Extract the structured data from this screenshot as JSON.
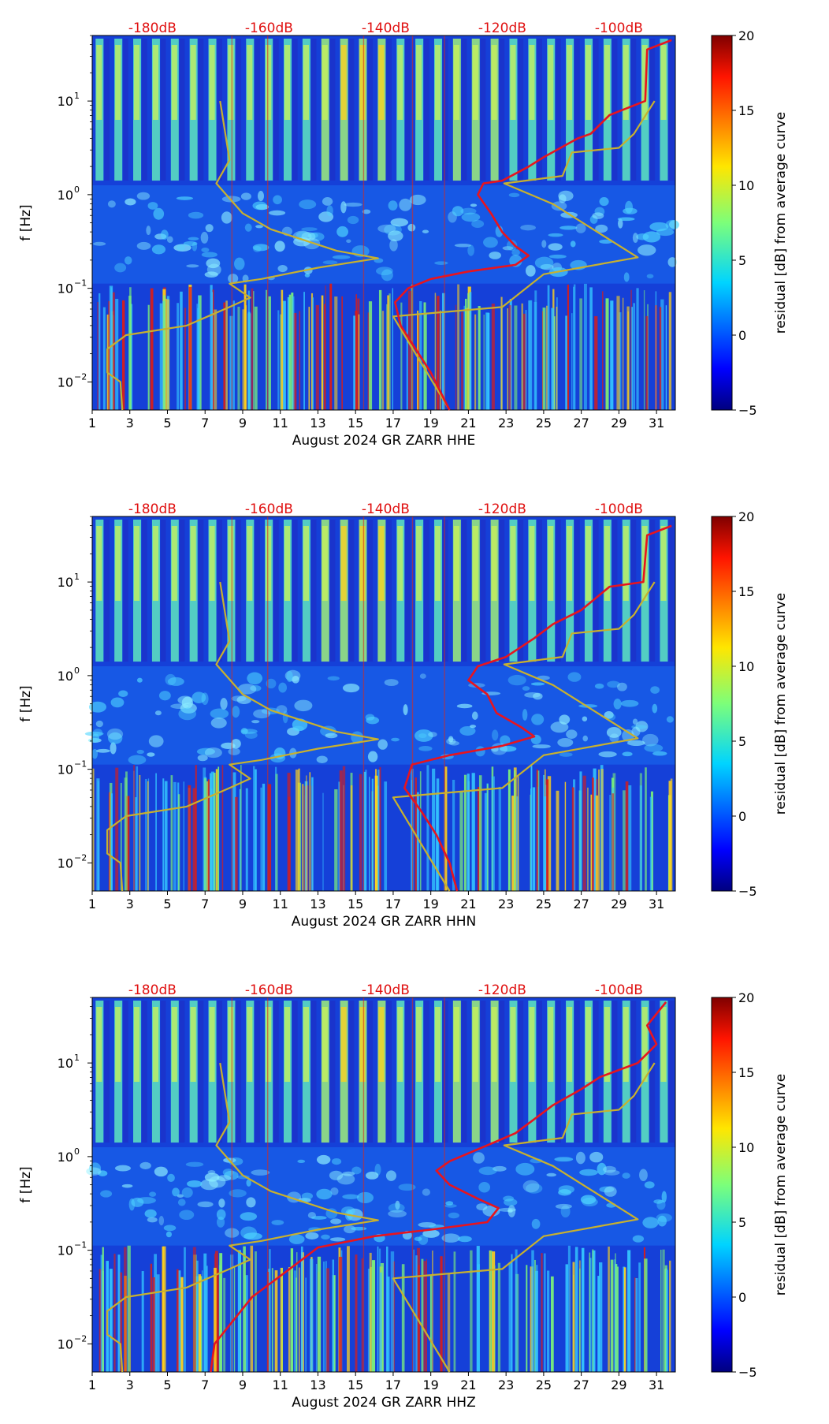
{
  "chart_data": [
    {
      "type": "heatmap",
      "xlabel": "August 2024 GR ZARR  HHE",
      "ylabel": "f [Hz]",
      "xticks": [
        "1",
        "3",
        "5",
        "7",
        "9",
        "11",
        "13",
        "15",
        "17",
        "19",
        "21",
        "23",
        "25",
        "27",
        "29",
        "31"
      ],
      "yticks": [
        {
          "exp": -2,
          "label": "10",
          "sup": "−2"
        },
        {
          "exp": -1,
          "label": "10",
          "sup": "−1"
        },
        {
          "exp": 0,
          "label": "10",
          "sup": "0"
        },
        {
          "exp": 1,
          "label": "10",
          "sup": "1"
        }
      ],
      "xlim": [
        1,
        32
      ],
      "ylim_log10": [
        -2.3,
        1.7
      ],
      "db_labels": [
        "-180dB",
        "-160dB",
        "-140dB",
        "-120dB",
        "-100dB"
      ],
      "db_positions_day": [
        4.2,
        10.4,
        16.6,
        22.8,
        29.0
      ],
      "colorbar": {
        "label": "residual [dB] from average curve",
        "ticks": [
          "−5",
          "0",
          "5",
          "10",
          "15",
          "20"
        ],
        "range": [
          -5,
          20
        ]
      },
      "series": [
        {
          "name": "model-bounds",
          "color": "#c8b12e",
          "points": [
            [
              7.8,
              1.0
            ],
            [
              8.3,
              0.37
            ],
            [
              7.6,
              0.12
            ],
            [
              9.0,
              -0.2
            ],
            [
              10.5,
              -0.37
            ],
            [
              14.0,
              -0.6
            ],
            [
              16.2,
              -0.68
            ],
            [
              13.0,
              -0.78
            ],
            [
              10.0,
              -0.9
            ],
            [
              8.3,
              -0.95
            ],
            [
              9.4,
              -1.1
            ],
            [
              8.3,
              -1.2
            ],
            [
              6.0,
              -1.4
            ],
            [
              2.8,
              -1.5
            ],
            [
              1.8,
              -1.65
            ],
            [
              1.8,
              -1.9
            ],
            [
              2.5,
              -2.0
            ],
            [
              2.6,
              -2.3
            ]
          ]
        },
        {
          "name": "model-bounds-2",
          "color": "#c8b12e",
          "points": [
            [
              30.9,
              1.0
            ],
            [
              29.8,
              0.65
            ],
            [
              29.0,
              0.5
            ],
            [
              26.5,
              0.45
            ],
            [
              26.0,
              0.2
            ],
            [
              22.9,
              0.12
            ],
            [
              25.5,
              -0.1
            ],
            [
              30.0,
              -0.67
            ],
            [
              25.0,
              -0.85
            ],
            [
              22.8,
              -1.2
            ],
            [
              17.0,
              -1.3
            ],
            [
              20.0,
              -2.3
            ]
          ]
        },
        {
          "name": "measured-psd",
          "color": "#e8141e",
          "points": [
            [
              31.8,
              1.65
            ],
            [
              30.5,
              1.55
            ],
            [
              30.4,
              1.0
            ],
            [
              28.5,
              0.85
            ],
            [
              27.5,
              0.65
            ],
            [
              26.8,
              0.6
            ],
            [
              25.0,
              0.4
            ],
            [
              24.2,
              0.3
            ],
            [
              22.8,
              0.15
            ],
            [
              21.8,
              0.12
            ],
            [
              21.5,
              0.0
            ],
            [
              22.2,
              -0.2
            ],
            [
              22.8,
              -0.4
            ],
            [
              23.5,
              -0.55
            ],
            [
              24.2,
              -0.65
            ],
            [
              23.5,
              -0.75
            ],
            [
              21.0,
              -0.82
            ],
            [
              19.0,
              -0.9
            ],
            [
              17.8,
              -1.0
            ],
            [
              17.1,
              -1.15
            ],
            [
              17.4,
              -1.4
            ],
            [
              18.2,
              -1.65
            ],
            [
              19.0,
              -1.9
            ],
            [
              19.5,
              -2.1
            ],
            [
              20.0,
              -2.3
            ]
          ]
        }
      ]
    },
    {
      "type": "heatmap",
      "xlabel": "August 2024 GR ZARR  HHN",
      "ylabel": "f [Hz]",
      "xticks": [
        "1",
        "3",
        "5",
        "7",
        "9",
        "11",
        "13",
        "15",
        "17",
        "19",
        "21",
        "23",
        "25",
        "27",
        "29",
        "31"
      ],
      "yticks": [
        {
          "exp": -2,
          "label": "10",
          "sup": "−2"
        },
        {
          "exp": -1,
          "label": "10",
          "sup": "−1"
        },
        {
          "exp": 0,
          "label": "10",
          "sup": "0"
        },
        {
          "exp": 1,
          "label": "10",
          "sup": "1"
        }
      ],
      "xlim": [
        1,
        32
      ],
      "ylim_log10": [
        -2.3,
        1.7
      ],
      "db_labels": [
        "-180dB",
        "-160dB",
        "-140dB",
        "-120dB",
        "-100dB"
      ],
      "db_positions_day": [
        4.2,
        10.4,
        16.6,
        22.8,
        29.0
      ],
      "colorbar": {
        "label": "residual [dB] from average curve",
        "ticks": [
          "−5",
          "0",
          "5",
          "10",
          "15",
          "20"
        ],
        "range": [
          -5,
          20
        ]
      },
      "series": [
        {
          "name": "model-bounds",
          "color": "#c8b12e",
          "points": [
            [
              7.8,
              1.0
            ],
            [
              8.3,
              0.37
            ],
            [
              7.6,
              0.12
            ],
            [
              9.0,
              -0.2
            ],
            [
              10.5,
              -0.37
            ],
            [
              14.0,
              -0.6
            ],
            [
              16.2,
              -0.68
            ],
            [
              13.0,
              -0.78
            ],
            [
              10.0,
              -0.9
            ],
            [
              8.3,
              -0.95
            ],
            [
              9.4,
              -1.1
            ],
            [
              8.3,
              -1.2
            ],
            [
              6.0,
              -1.4
            ],
            [
              2.8,
              -1.5
            ],
            [
              1.8,
              -1.65
            ],
            [
              1.8,
              -1.9
            ],
            [
              2.5,
              -2.0
            ],
            [
              2.6,
              -2.3
            ]
          ]
        },
        {
          "name": "model-bounds-2",
          "color": "#c8b12e",
          "points": [
            [
              30.9,
              1.0
            ],
            [
              29.8,
              0.65
            ],
            [
              29.0,
              0.5
            ],
            [
              26.5,
              0.45
            ],
            [
              26.0,
              0.2
            ],
            [
              22.9,
              0.12
            ],
            [
              25.5,
              -0.1
            ],
            [
              30.0,
              -0.67
            ],
            [
              25.0,
              -0.85
            ],
            [
              22.8,
              -1.2
            ],
            [
              17.0,
              -1.3
            ],
            [
              20.0,
              -2.3
            ]
          ]
        },
        {
          "name": "measured-psd",
          "color": "#e8141e",
          "points": [
            [
              31.8,
              1.6
            ],
            [
              30.5,
              1.5
            ],
            [
              30.3,
              1.0
            ],
            [
              28.5,
              0.95
            ],
            [
              27.0,
              0.7
            ],
            [
              25.5,
              0.55
            ],
            [
              24.5,
              0.4
            ],
            [
              23.0,
              0.2
            ],
            [
              21.5,
              0.1
            ],
            [
              21.0,
              -0.05
            ],
            [
              22.0,
              -0.2
            ],
            [
              22.5,
              -0.4
            ],
            [
              23.8,
              -0.55
            ],
            [
              24.5,
              -0.65
            ],
            [
              22.8,
              -0.75
            ],
            [
              20.0,
              -0.85
            ],
            [
              18.0,
              -0.95
            ],
            [
              17.6,
              -1.2
            ],
            [
              18.5,
              -1.45
            ],
            [
              19.3,
              -1.7
            ],
            [
              20.0,
              -2.0
            ],
            [
              20.4,
              -2.3
            ]
          ]
        }
      ]
    },
    {
      "type": "heatmap",
      "xlabel": "August 2024 GR ZARR  HHZ",
      "ylabel": "f [Hz]",
      "xticks": [
        "1",
        "3",
        "5",
        "7",
        "9",
        "11",
        "13",
        "15",
        "17",
        "19",
        "21",
        "23",
        "25",
        "27",
        "29",
        "31"
      ],
      "yticks": [
        {
          "exp": -2,
          "label": "10",
          "sup": "−2"
        },
        {
          "exp": -1,
          "label": "10",
          "sup": "−1"
        },
        {
          "exp": 0,
          "label": "10",
          "sup": "0"
        },
        {
          "exp": 1,
          "label": "10",
          "sup": "1"
        }
      ],
      "xlim": [
        1,
        32
      ],
      "ylim_log10": [
        -2.3,
        1.7
      ],
      "db_labels": [
        "-180dB",
        "-160dB",
        "-140dB",
        "-120dB",
        "-100dB"
      ],
      "db_positions_day": [
        4.2,
        10.4,
        16.6,
        22.8,
        29.0
      ],
      "colorbar": {
        "label": "residual [dB] from average curve",
        "ticks": [
          "−5",
          "0",
          "5",
          "10",
          "15",
          "20"
        ],
        "range": [
          -5,
          20
        ]
      },
      "series": [
        {
          "name": "model-bounds",
          "color": "#c8b12e",
          "points": [
            [
              7.8,
              1.0
            ],
            [
              8.3,
              0.37
            ],
            [
              7.6,
              0.12
            ],
            [
              9.0,
              -0.2
            ],
            [
              10.5,
              -0.37
            ],
            [
              14.0,
              -0.6
            ],
            [
              16.2,
              -0.68
            ],
            [
              13.0,
              -0.78
            ],
            [
              10.0,
              -0.9
            ],
            [
              8.3,
              -0.95
            ],
            [
              9.4,
              -1.1
            ],
            [
              8.3,
              -1.2
            ],
            [
              6.0,
              -1.4
            ],
            [
              2.8,
              -1.5
            ],
            [
              1.8,
              -1.65
            ],
            [
              1.8,
              -1.9
            ],
            [
              2.5,
              -2.0
            ],
            [
              2.6,
              -2.3
            ]
          ]
        },
        {
          "name": "model-bounds-2",
          "color": "#c8b12e",
          "points": [
            [
              30.9,
              1.0
            ],
            [
              29.8,
              0.65
            ],
            [
              29.0,
              0.5
            ],
            [
              26.5,
              0.45
            ],
            [
              26.0,
              0.2
            ],
            [
              22.9,
              0.12
            ],
            [
              25.5,
              -0.1
            ],
            [
              30.0,
              -0.67
            ],
            [
              25.0,
              -0.85
            ],
            [
              22.8,
              -1.2
            ],
            [
              17.0,
              -1.3
            ],
            [
              20.0,
              -2.3
            ]
          ]
        },
        {
          "name": "measured-psd",
          "color": "#e8141e",
          "points": [
            [
              31.5,
              1.65
            ],
            [
              30.5,
              1.4
            ],
            [
              31.0,
              1.2
            ],
            [
              30.0,
              1.0
            ],
            [
              28.0,
              0.85
            ],
            [
              27.0,
              0.72
            ],
            [
              25.5,
              0.55
            ],
            [
              24.5,
              0.4
            ],
            [
              23.5,
              0.25
            ],
            [
              22.0,
              0.12
            ],
            [
              20.0,
              -0.05
            ],
            [
              19.3,
              -0.15
            ],
            [
              20.0,
              -0.3
            ],
            [
              21.5,
              -0.45
            ],
            [
              22.6,
              -0.55
            ],
            [
              22.0,
              -0.7
            ],
            [
              19.0,
              -0.78
            ],
            [
              16.0,
              -0.85
            ],
            [
              13.0,
              -0.97
            ],
            [
              11.5,
              -1.2
            ],
            [
              9.5,
              -1.5
            ],
            [
              8.3,
              -1.8
            ],
            [
              7.5,
              -2.0
            ],
            [
              7.3,
              -2.3
            ]
          ]
        }
      ]
    }
  ]
}
